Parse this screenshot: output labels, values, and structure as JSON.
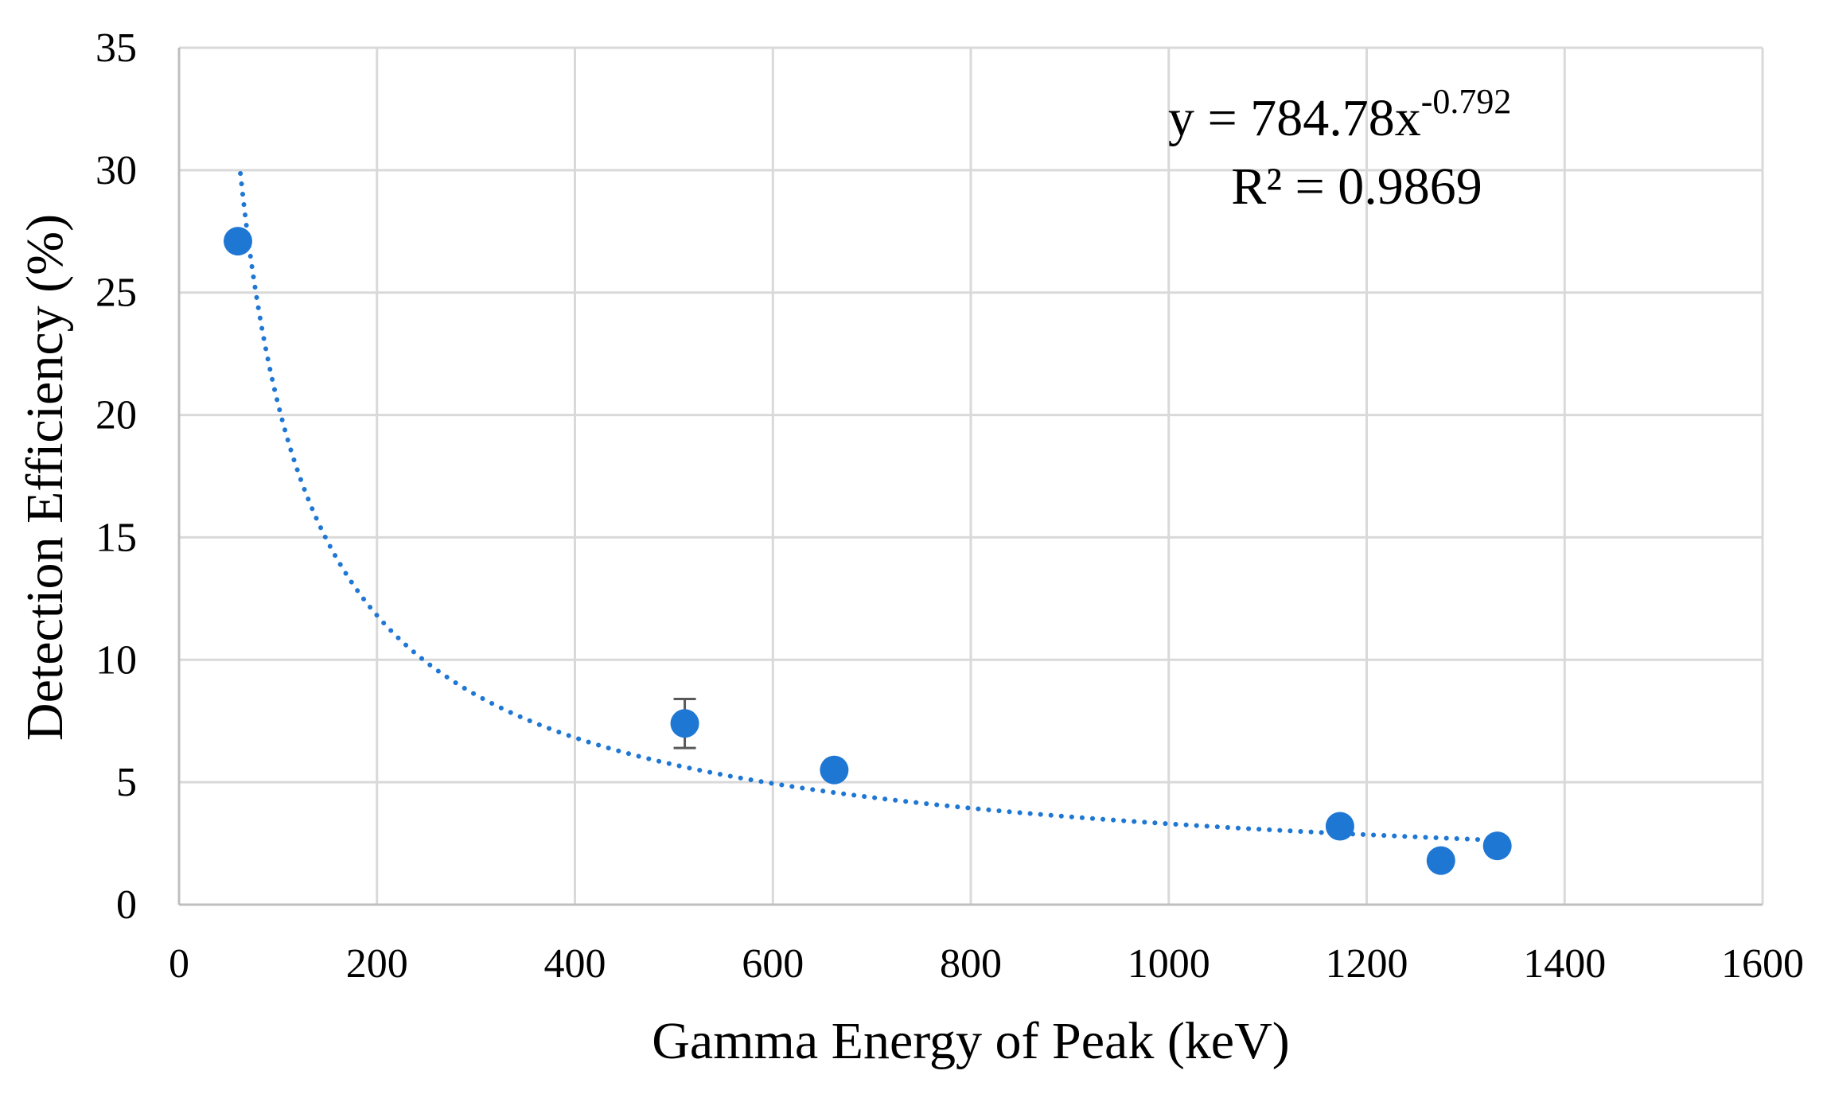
{
  "chart_data": {
    "type": "scatter",
    "title": "",
    "xlabel": "Gamma Energy of Peak (keV)",
    "ylabel": "Detection Efficiency (%)",
    "xlim": [
      0,
      1600
    ],
    "ylim": [
      0,
      35
    ],
    "x_ticks": [
      0,
      200,
      400,
      600,
      800,
      1000,
      1200,
      1400,
      1600
    ],
    "y_ticks": [
      0,
      5,
      10,
      15,
      20,
      25,
      30,
      35
    ],
    "grid": true,
    "series": [
      {
        "name": "Detection Efficiency",
        "color": "#1f77d4",
        "points": [
          {
            "x": 59.5,
            "y": 27.1
          },
          {
            "x": 511,
            "y": 7.4,
            "err": 1.0
          },
          {
            "x": 662,
            "y": 5.5
          },
          {
            "x": 1173,
            "y": 3.2
          },
          {
            "x": 1275,
            "y": 1.8
          },
          {
            "x": 1332,
            "y": 2.4
          }
        ]
      }
    ],
    "trendline": {
      "type": "power",
      "a": 784.78,
      "b": -0.792,
      "x_range": [
        62,
        1332
      ],
      "style": "dotted",
      "color": "#1f77d4"
    },
    "annotation": {
      "equation_base": "y = 784.78x",
      "equation_exponent": "-0.792",
      "r_squared": "R² = 0.9869"
    }
  }
}
